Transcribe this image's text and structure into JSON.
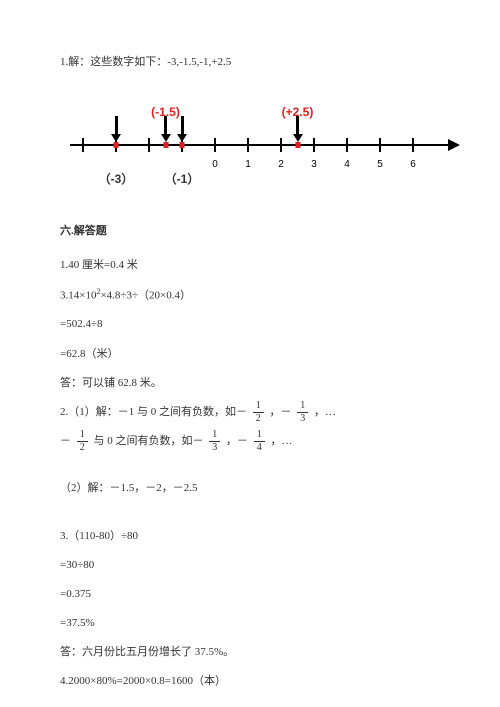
{
  "problem1": {
    "intro": "1.解：这些数字如下：-3,-1.5,-1,+2.5",
    "numberLine": {
      "xStart": -4,
      "xEnd": 6,
      "unitPx": 33,
      "originPx": 145,
      "ticks": [
        -4,
        -3,
        -2,
        -1,
        0,
        1,
        2,
        3,
        4,
        5,
        6
      ],
      "tickLabels": [
        0,
        1,
        2,
        3,
        4,
        5,
        6
      ],
      "topLabels": [
        {
          "x": -1.5,
          "text": "(-1.5)",
          "class": "red-text"
        },
        {
          "x": 2.5,
          "text": "(+2.5)",
          "class": "red-text"
        }
      ],
      "arrows": [
        -3,
        -1.5,
        -1,
        2.5
      ],
      "redMarks": [
        -3,
        -1.5,
        -1,
        2.5
      ],
      "bottomLabels": [
        {
          "x": -3,
          "text": "（-3）"
        },
        {
          "x": -1,
          "text": "（-1）"
        }
      ]
    }
  },
  "section6": {
    "title": "六.解答题",
    "q1": {
      "l1": "1.40 厘米=0.4 米",
      "l2": "3.14×10²×4.8÷3÷（20×0.4）",
      "l3": "=502.4÷8",
      "l4": "=62.8（米）",
      "l5": "答：可以铺 62.8 米。"
    },
    "q2": {
      "part1_prefix": "2.（1）解：－1 与 0 之间有负数，如－",
      "frac_a": {
        "num": "1",
        "den": "2"
      },
      "comma1": "，－",
      "frac_b": {
        "num": "1",
        "den": "3"
      },
      "dots1": "，…",
      "part1b_prefix": "－",
      "frac_c": {
        "num": "1",
        "den": "2"
      },
      "mid": " 与 0 之间有负数，如－",
      "frac_d": {
        "num": "1",
        "den": "3"
      },
      "comma2": "，－",
      "frac_e": {
        "num": "1",
        "den": "4"
      },
      "dots2": "，…",
      "part2": "（2）解：－1.5，－2，－2.5"
    },
    "q3": {
      "l1": "3.（110-80）÷80",
      "l2": "=30÷80",
      "l3": "=0.375",
      "l4": "=37.5%",
      "l5": "答：六月份比五月份增长了 37.5%。"
    },
    "q4": {
      "l1": "4.2000×80%=2000×0.8=1600（本）"
    }
  }
}
